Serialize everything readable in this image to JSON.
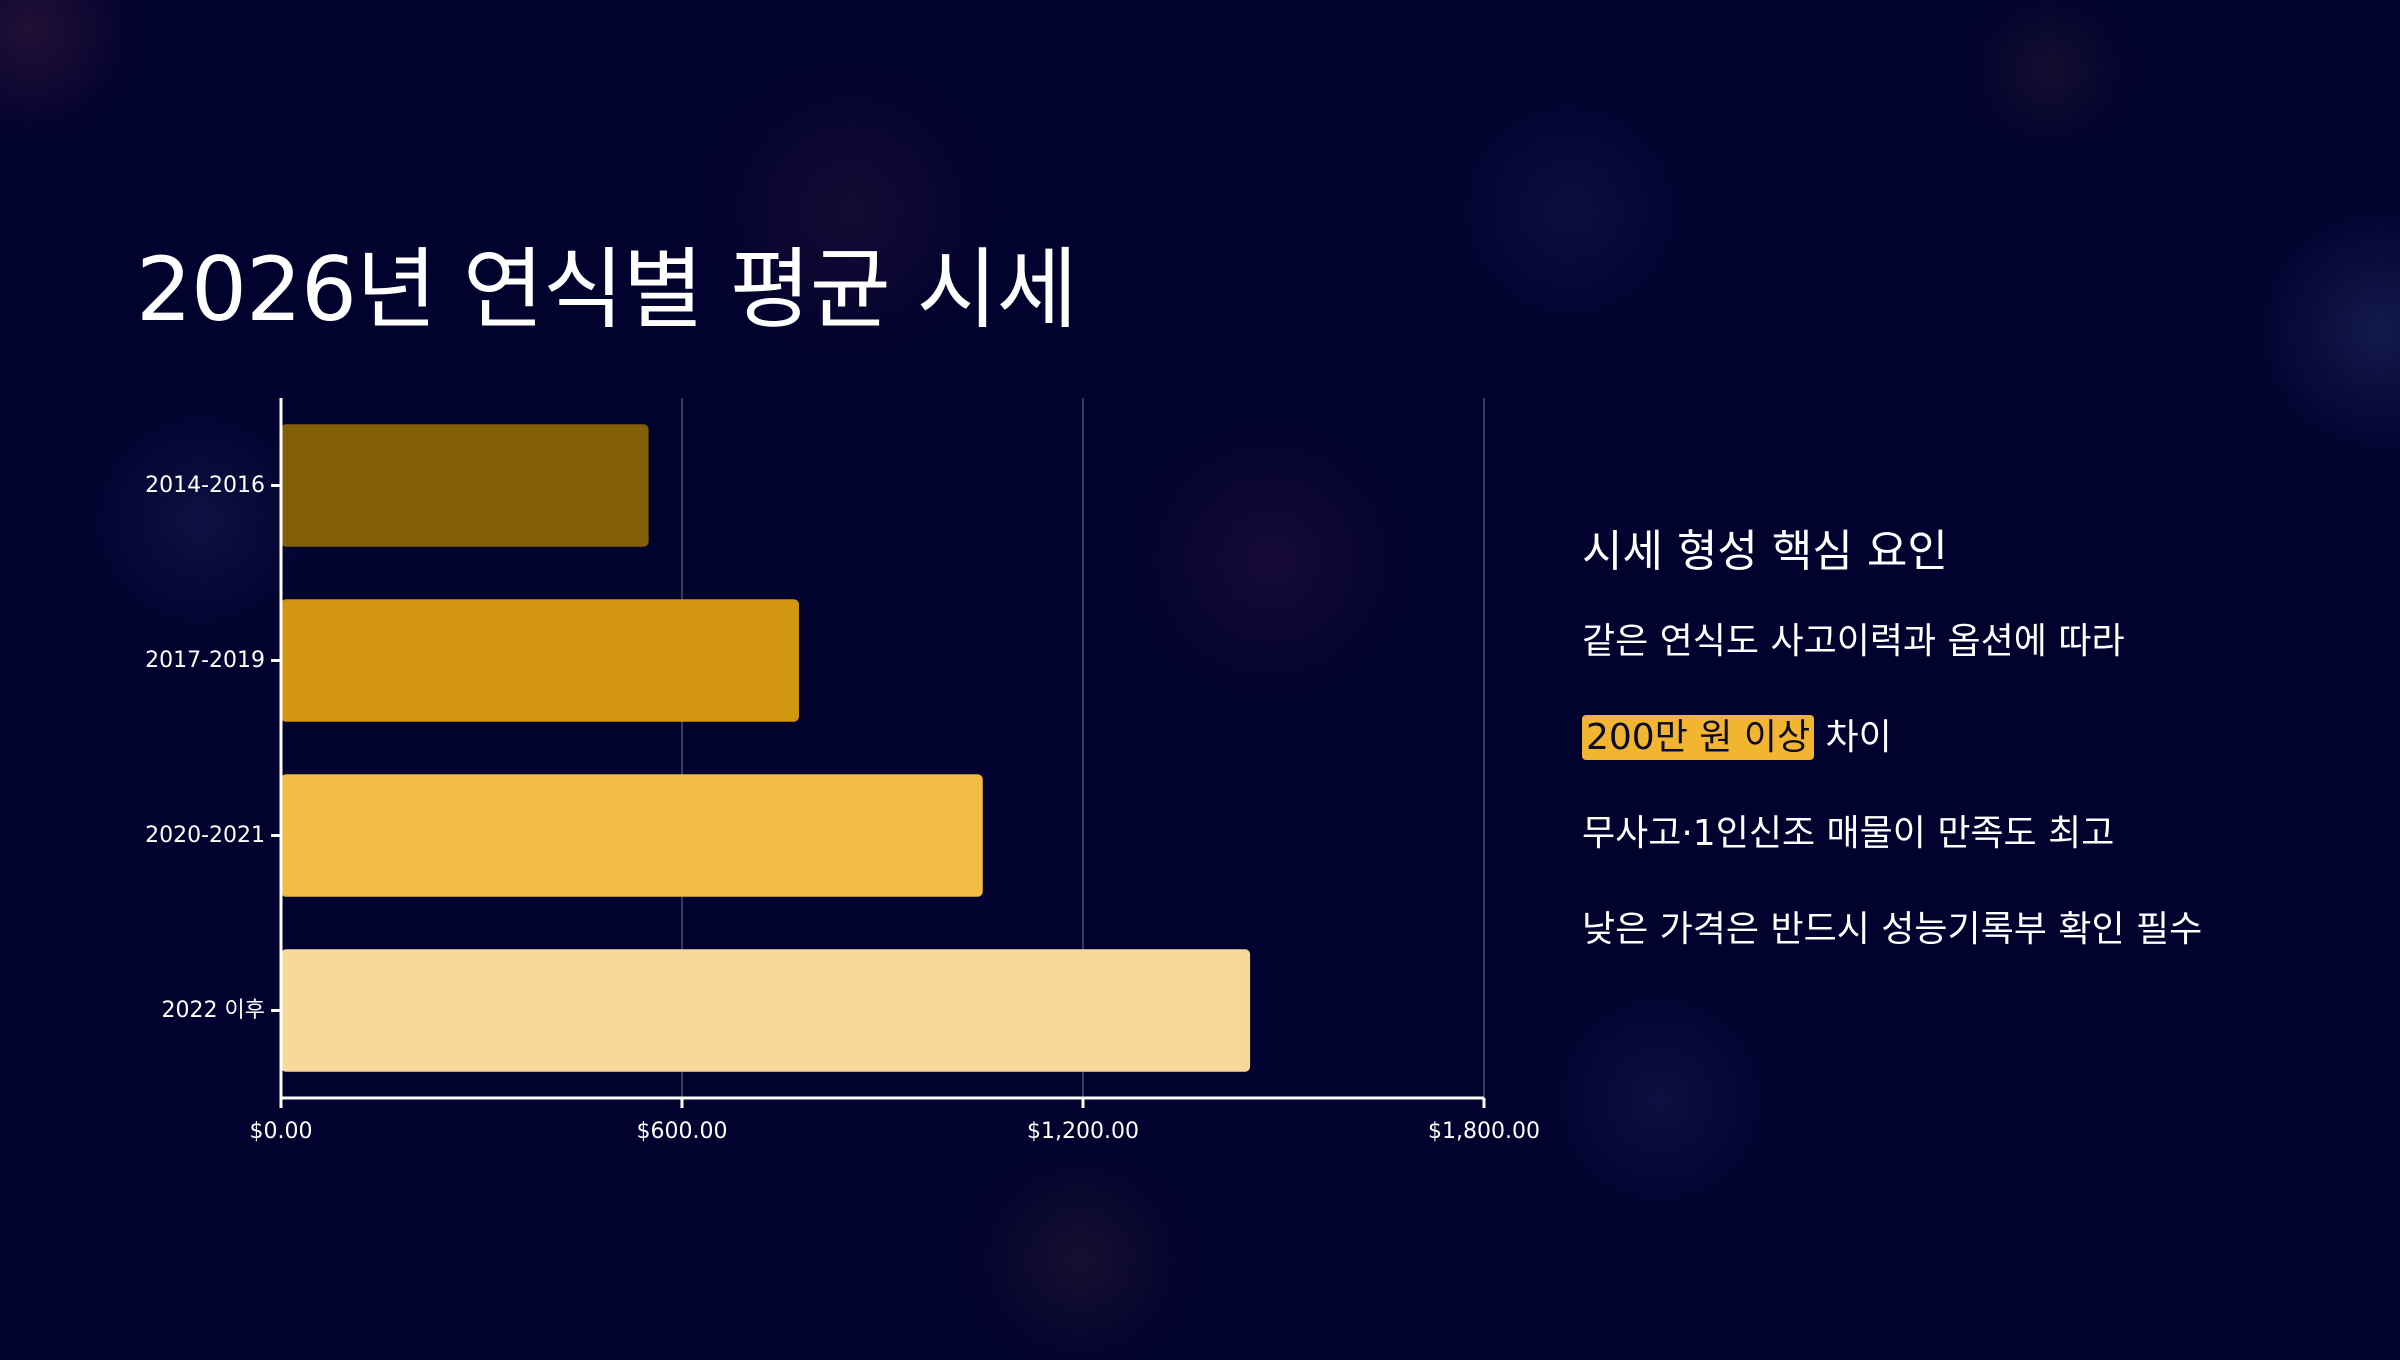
{
  "title": "2026년 연식별 평균 시세",
  "chart_data": {
    "type": "bar",
    "orientation": "horizontal",
    "categories": [
      "2014-2016",
      "2017-2019",
      "2020-2021",
      "2022 이후"
    ],
    "values": [
      550,
      775,
      1050,
      1450
    ],
    "xlim": [
      0,
      1800
    ],
    "xticks": [
      0,
      600,
      1200,
      1800
    ],
    "xtick_labels": [
      "$0.00",
      "$600.00",
      "$1,200.00",
      "$1,800.00"
    ],
    "colors": [
      "#835e08",
      "#d39610",
      "#f2bb44",
      "#f8d99b"
    ],
    "grid": true,
    "title": "",
    "xlabel": "",
    "ylabel": ""
  },
  "side": {
    "heading": "시세 형성 핵심 요인",
    "line1": "같은 연식도 사고이력과 옵션에 따라",
    "line2_highlight": "200만 원 이상",
    "line2_rest": " 차이",
    "line3": "무사고·1인신조 매물이 만족도 최고",
    "line4": "낮은 가격은 반드시 성능기록부 확인 필수"
  },
  "colors": {
    "background": "#02022e",
    "highlight": "#f2b530",
    "text": "#ffffff",
    "gridline": "#3a3a5a"
  }
}
